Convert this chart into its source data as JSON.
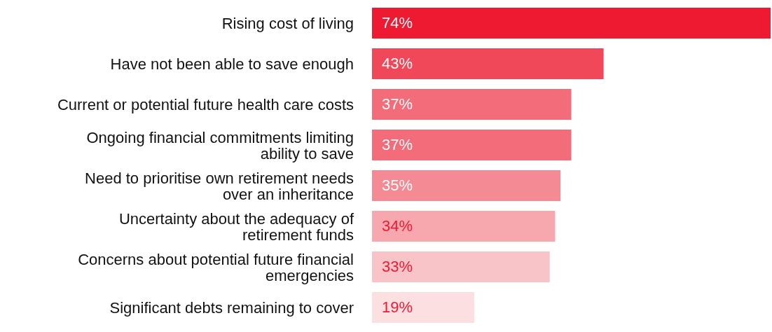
{
  "chart_data": {
    "type": "bar",
    "orientation": "horizontal",
    "categories": [
      "Rising cost of living",
      "Have not been able to save enough",
      "Current or potential future health care costs",
      "Ongoing financial commitments limiting ability to save",
      "Need to prioritise own retirement needs over an inheritance",
      "Uncertainty about the adequacy of retirement funds",
      "Concerns about potential future financial emergencies",
      "Significant debts remaining to cover"
    ],
    "values": [
      74,
      43,
      37,
      37,
      35,
      34,
      33,
      19
    ],
    "colors": [
      "#ed1a31",
      "#f04759",
      "#f26c7a",
      "#f26c7a",
      "#f48a93",
      "#f7a7ae",
      "#f9c4c8",
      "#fbdfe1"
    ],
    "value_labels": [
      "74%",
      "43%",
      "37%",
      "37%",
      "35%",
      "34%",
      "33%",
      "19%"
    ],
    "xlim": [
      0,
      74
    ],
    "tick_labels": "y"
  }
}
